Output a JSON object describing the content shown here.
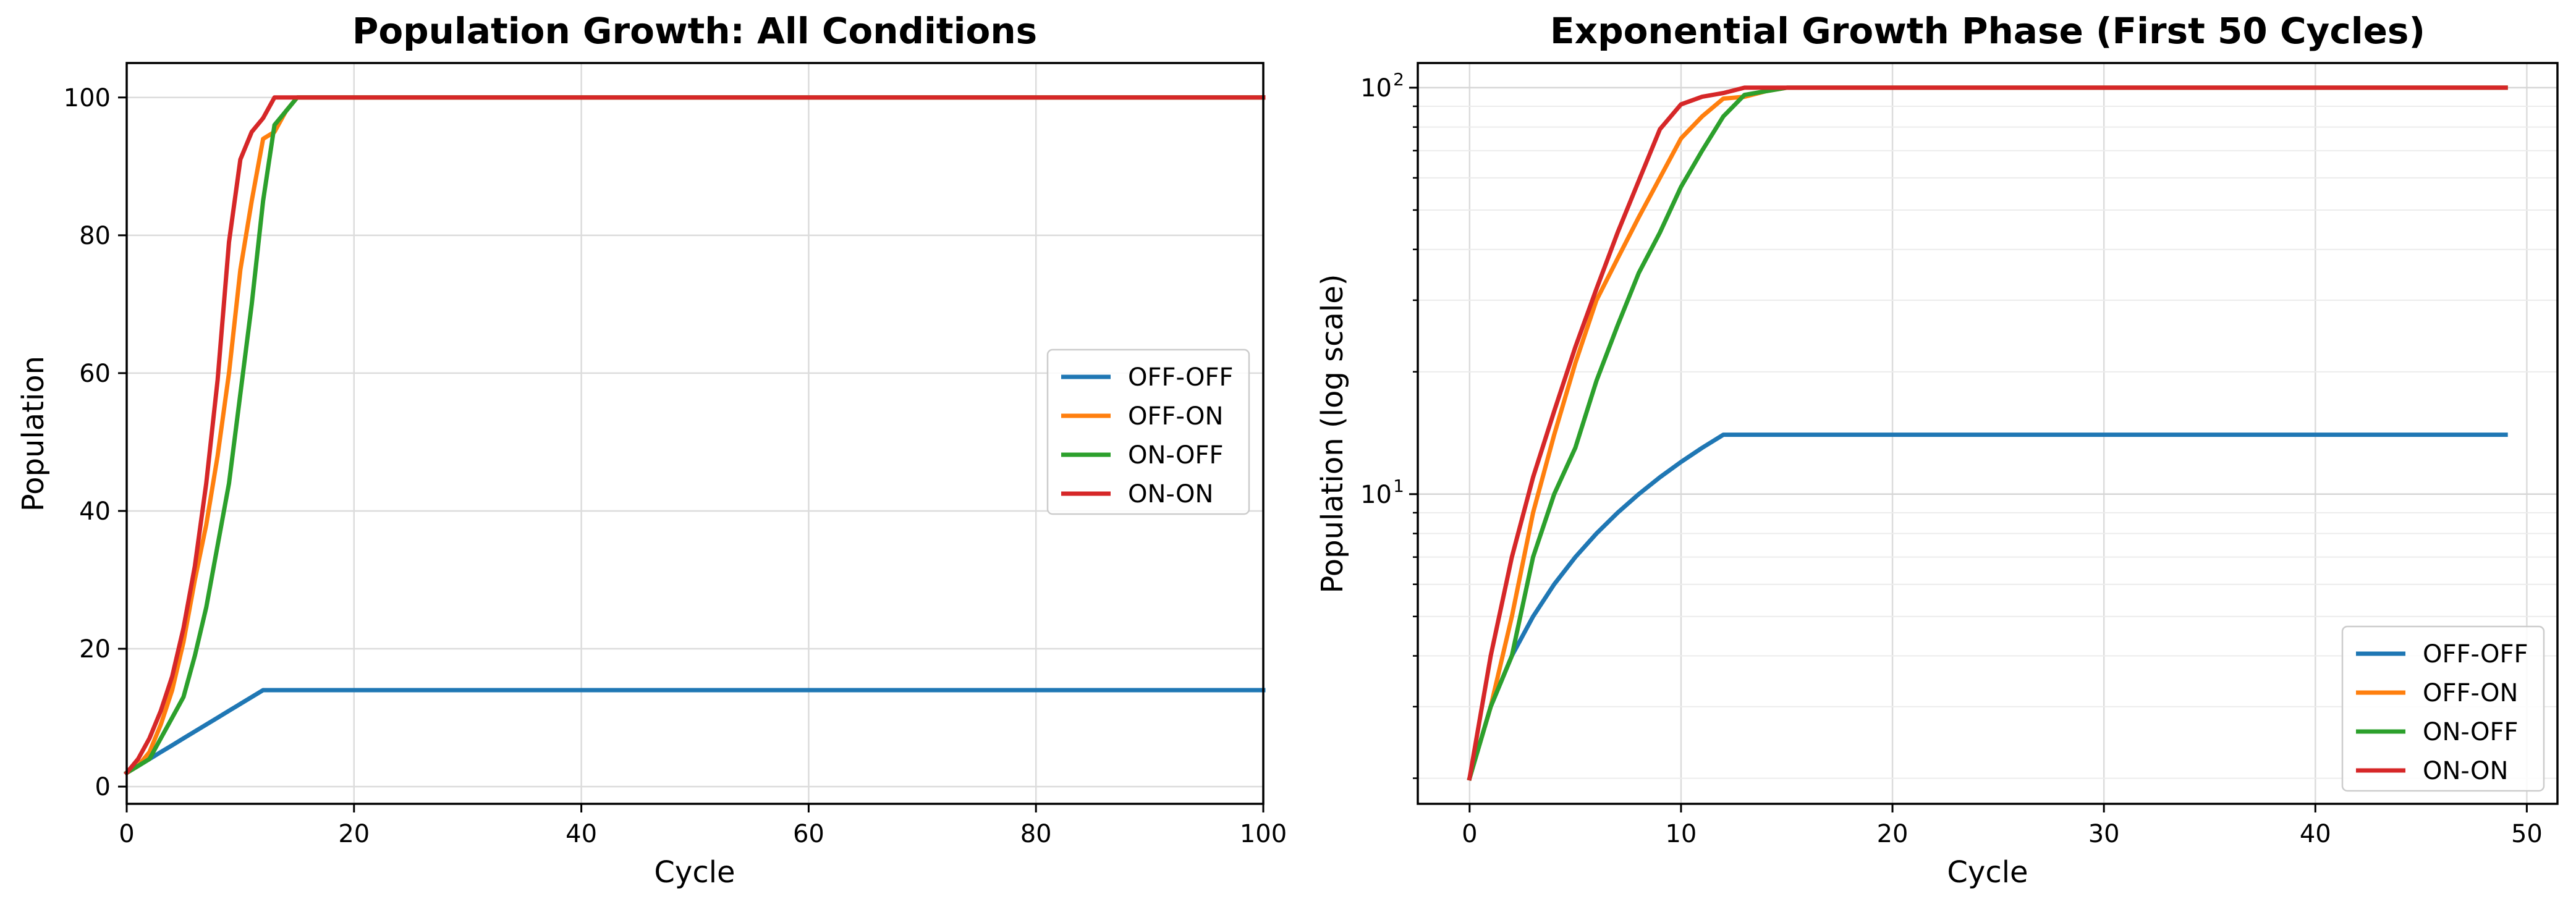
{
  "chart_data": [
    {
      "type": "line",
      "title": "Population Growth: All Conditions",
      "xlabel": "Cycle",
      "ylabel": "Population",
      "xlim": [
        0,
        100
      ],
      "ylim": [
        -2.5,
        105
      ],
      "yscale": "linear",
      "xticks": [
        0,
        20,
        40,
        60,
        80,
        100
      ],
      "xtick_labels": [
        "0",
        "20",
        "40",
        "60",
        "80",
        "100"
      ],
      "yticks": [
        0,
        20,
        40,
        60,
        80,
        100
      ],
      "ytick_labels": [
        "0",
        "20",
        "40",
        "60",
        "80",
        "100"
      ],
      "grid": true,
      "legend": "center-right",
      "series": [
        {
          "name": "OFF-OFF",
          "color": "#1f77b4",
          "x": [
            0,
            1,
            2,
            3,
            4,
            5,
            6,
            7,
            8,
            9,
            10,
            11,
            12,
            13,
            20,
            40,
            60,
            80,
            100
          ],
          "y": [
            2,
            3,
            4,
            5,
            6,
            7,
            8,
            9,
            10,
            11,
            12,
            13,
            14,
            14,
            14,
            14,
            14,
            14,
            14
          ]
        },
        {
          "name": "OFF-ON",
          "color": "#ff7f0e",
          "x": [
            0,
            1,
            2,
            3,
            4,
            5,
            6,
            7,
            8,
            9,
            10,
            11,
            12,
            13,
            14,
            15,
            20,
            40,
            60,
            80,
            100
          ],
          "y": [
            2,
            3,
            5,
            9,
            14,
            21,
            30,
            38,
            48,
            60,
            75,
            85,
            94,
            95,
            98,
            100,
            100,
            100,
            100,
            100,
            100
          ]
        },
        {
          "name": "ON-OFF",
          "color": "#2ca02c",
          "x": [
            0,
            1,
            2,
            3,
            4,
            5,
            6,
            7,
            8,
            9,
            10,
            11,
            12,
            13,
            14,
            15,
            20,
            40,
            60,
            80,
            100
          ],
          "y": [
            2,
            3,
            4,
            7,
            10,
            13,
            19,
            26,
            35,
            44,
            57,
            70,
            85,
            96,
            98,
            100,
            100,
            100,
            100,
            100,
            100
          ]
        },
        {
          "name": "ON-ON",
          "color": "#d62728",
          "x": [
            0,
            1,
            2,
            3,
            4,
            5,
            6,
            7,
            8,
            9,
            10,
            11,
            12,
            13,
            14,
            15,
            20,
            40,
            60,
            80,
            100
          ],
          "y": [
            2,
            4,
            7,
            11,
            16,
            23,
            32,
            44,
            59,
            79,
            91,
            95,
            97,
            100,
            100,
            100,
            100,
            100,
            100,
            100,
            100
          ]
        }
      ]
    },
    {
      "type": "line",
      "title": "Exponential Growth Phase (First 50 Cycles)",
      "xlabel": "Cycle",
      "ylabel": "Population (log scale)",
      "xlim": [
        -2.45,
        51.45
      ],
      "ylim": [
        1.73,
        115
      ],
      "yscale": "log",
      "xticks": [
        0,
        10,
        20,
        30,
        40,
        50
      ],
      "xtick_labels": [
        "0",
        "10",
        "20",
        "30",
        "40",
        "50"
      ],
      "yticks_major": [
        10,
        100
      ],
      "ytick_labels": [
        "10",
        "10"
      ],
      "ytick_exponents": [
        "1",
        "2"
      ],
      "grid": true,
      "legend": "lower-right",
      "series": [
        {
          "name": "OFF-OFF",
          "color": "#1f77b4",
          "x": [
            0,
            1,
            2,
            3,
            4,
            5,
            6,
            7,
            8,
            9,
            10,
            11,
            12,
            13,
            20,
            30,
            40,
            49
          ],
          "y": [
            2,
            3,
            4,
            5,
            6,
            7,
            8,
            9,
            10,
            11,
            12,
            13,
            14,
            14,
            14,
            14,
            14,
            14
          ]
        },
        {
          "name": "OFF-ON",
          "color": "#ff7f0e",
          "x": [
            0,
            1,
            2,
            3,
            4,
            5,
            6,
            7,
            8,
            9,
            10,
            11,
            12,
            13,
            14,
            15,
            20,
            30,
            40,
            49
          ],
          "y": [
            2,
            3,
            5,
            9,
            14,
            21,
            30,
            38,
            48,
            60,
            75,
            85,
            94,
            95,
            98,
            100,
            100,
            100,
            100,
            100
          ]
        },
        {
          "name": "ON-OFF",
          "color": "#2ca02c",
          "x": [
            0,
            1,
            2,
            3,
            4,
            5,
            6,
            7,
            8,
            9,
            10,
            11,
            12,
            13,
            14,
            15,
            20,
            30,
            40,
            49
          ],
          "y": [
            2,
            3,
            4,
            7,
            10,
            13,
            19,
            26,
            35,
            44,
            57,
            70,
            85,
            96,
            98,
            100,
            100,
            100,
            100,
            100
          ]
        },
        {
          "name": "ON-ON",
          "color": "#d62728",
          "x": [
            0,
            1,
            2,
            3,
            4,
            5,
            6,
            7,
            8,
            9,
            10,
            11,
            12,
            13,
            14,
            15,
            20,
            30,
            40,
            49
          ],
          "y": [
            2,
            4,
            7,
            11,
            16,
            23,
            32,
            44,
            59,
            79,
            91,
            95,
            97,
            100,
            100,
            100,
            100,
            100,
            100,
            100
          ]
        }
      ]
    }
  ]
}
